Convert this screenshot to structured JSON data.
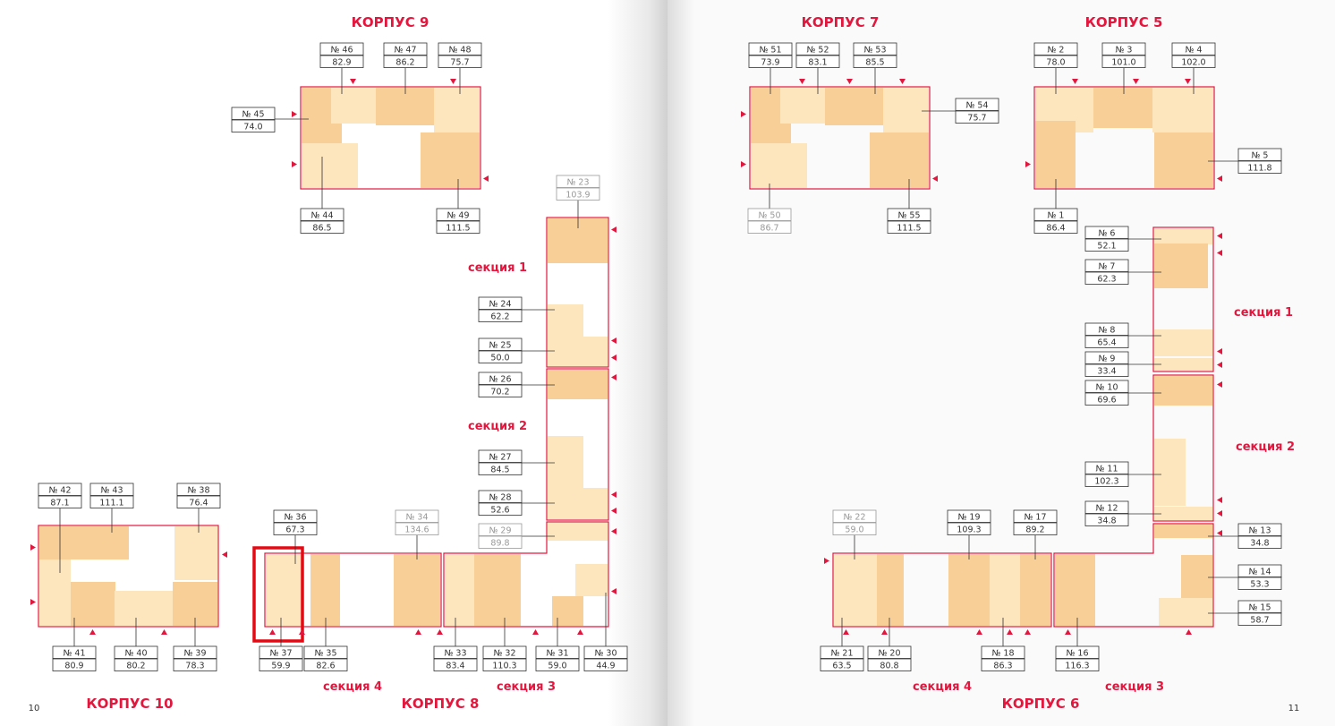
{
  "buildings": [
    {
      "title": "КОРПУС 9"
    },
    {
      "title": "КОРПУС 7"
    },
    {
      "title": "КОРПУС 5"
    },
    {
      "title": "КОРПУС 10"
    },
    {
      "title": "КОРПУС 8"
    },
    {
      "title": "КОРПУС 6"
    }
  ],
  "sections": [
    {
      "label": "секция 1"
    },
    {
      "label": "секция 2"
    },
    {
      "label": "секция 4"
    },
    {
      "label": "секция 3"
    },
    {
      "label": "секция 1"
    },
    {
      "label": "секция 2"
    },
    {
      "label": "секция 4"
    },
    {
      "label": "секция 3"
    }
  ],
  "page_numbers": [
    "10",
    "11"
  ],
  "units": [
    {
      "number": "№ 46",
      "area": "82.9"
    },
    {
      "number": "№ 47",
      "area": "86.2"
    },
    {
      "number": "№ 48",
      "area": "75.7"
    },
    {
      "number": "№ 45",
      "area": "74.0"
    },
    {
      "number": "№ 44",
      "area": "86.5"
    },
    {
      "number": "№ 49",
      "area": "111.5"
    },
    {
      "number": "№ 23",
      "area": "103.9"
    },
    {
      "number": "№ 24",
      "area": "62.2"
    },
    {
      "number": "№ 25",
      "area": "50.0"
    },
    {
      "number": "№ 26",
      "area": "70.2"
    },
    {
      "number": "№ 27",
      "area": "84.5"
    },
    {
      "number": "№ 28",
      "area": "52.6"
    },
    {
      "number": "№ 29",
      "area": "89.8"
    },
    {
      "number": "№ 42",
      "area": "87.1"
    },
    {
      "number": "№ 43",
      "area": "111.1"
    },
    {
      "number": "№ 38",
      "area": "76.4"
    },
    {
      "number": "№ 36",
      "area": "67.3"
    },
    {
      "number": "№ 34",
      "area": "134.6"
    },
    {
      "number": "№ 41",
      "area": "80.9"
    },
    {
      "number": "№ 40",
      "area": "80.2"
    },
    {
      "number": "№ 39",
      "area": "78.3"
    },
    {
      "number": "№ 37",
      "area": "59.9"
    },
    {
      "number": "№ 35",
      "area": "82.6"
    },
    {
      "number": "№ 33",
      "area": "83.4"
    },
    {
      "number": "№ 32",
      "area": "110.3"
    },
    {
      "number": "№ 31",
      "area": "59.0"
    },
    {
      "number": "№ 30",
      "area": "44.9"
    },
    {
      "number": "№ 51",
      "area": "73.9"
    },
    {
      "number": "№ 52",
      "area": "83.1"
    },
    {
      "number": "№ 53",
      "area": "85.5"
    },
    {
      "number": "№ 54",
      "area": "75.7"
    },
    {
      "number": "№ 50",
      "area": "86.7"
    },
    {
      "number": "№ 55",
      "area": "111.5"
    },
    {
      "number": "№ 2",
      "area": "78.0"
    },
    {
      "number": "№ 3",
      "area": "101.0"
    },
    {
      "number": "№ 4",
      "area": "102.0"
    },
    {
      "number": "№ 5",
      "area": "111.8"
    },
    {
      "number": "№ 1",
      "area": "86.4"
    },
    {
      "number": "№ 6",
      "area": "52.1"
    },
    {
      "number": "№ 7",
      "area": "62.3"
    },
    {
      "number": "№ 8",
      "area": "65.4"
    },
    {
      "number": "№ 9",
      "area": "33.4"
    },
    {
      "number": "№ 10",
      "area": "69.6"
    },
    {
      "number": "№ 11",
      "area": "102.3"
    },
    {
      "number": "№ 12",
      "area": "34.8"
    },
    {
      "number": "№ 13",
      "area": "34.8"
    },
    {
      "number": "№ 14",
      "area": "53.3"
    },
    {
      "number": "№ 15",
      "area": "58.7"
    },
    {
      "number": "№ 22",
      "area": "59.0"
    },
    {
      "number": "№ 19",
      "area": "109.3"
    },
    {
      "number": "№ 17",
      "area": "89.2"
    },
    {
      "number": "№ 21",
      "area": "63.5"
    },
    {
      "number": "№ 20",
      "area": "80.8"
    },
    {
      "number": "№ 18",
      "area": "86.3"
    },
    {
      "number": "№ 16",
      "area": "116.3"
    }
  ]
}
